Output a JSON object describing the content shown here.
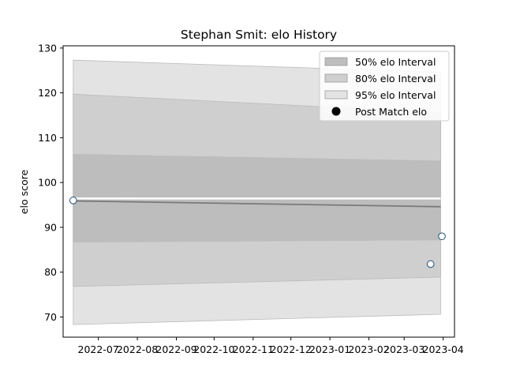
{
  "chart_data": {
    "type": "area",
    "title": "Stephan Smit: elo History",
    "xlabel": "",
    "ylabel": "elo score",
    "x_range": [
      "2022-06-03",
      "2023-04-10"
    ],
    "ylim": [
      65.5,
      130.5
    ],
    "y_ticks": [
      70,
      80,
      90,
      100,
      110,
      120,
      130
    ],
    "x_ticks": [
      "2022-07",
      "2022-08",
      "2022-09",
      "2022-10",
      "2022-11",
      "2022-12",
      "2023-01",
      "2023-02",
      "2023-03",
      "2023-04"
    ],
    "grid": false,
    "legend_position": "top-right",
    "mean_line": {
      "x": [
        "2022-06-11",
        "2023-03-30"
      ],
      "y": [
        95.9,
        94.6
      ]
    },
    "bands": [
      {
        "name": "95% elo Interval",
        "color": "#e3e3e3",
        "x": [
          "2022-06-11",
          "2023-03-30"
        ],
        "lower": [
          68.3,
          70.6
        ],
        "upper": [
          127.3,
          124.6
        ]
      },
      {
        "name": "80% elo Interval",
        "color": "#cfcfcf",
        "x": [
          "2022-06-11",
          "2023-03-30"
        ],
        "lower": [
          76.8,
          78.9
        ],
        "upper": [
          119.7,
          115.6
        ]
      },
      {
        "name": "50% elo Interval",
        "color": "#bdbdbd",
        "x": [
          "2022-06-11",
          "2023-03-30"
        ],
        "lower": [
          86.7,
          87.2
        ],
        "upper": [
          106.3,
          104.8
        ]
      }
    ],
    "points": {
      "name": "Post Match elo",
      "x": [
        "2022-06-11",
        "2023-03-22",
        "2023-03-31"
      ],
      "y": [
        96.0,
        81.8,
        88.0
      ]
    }
  }
}
